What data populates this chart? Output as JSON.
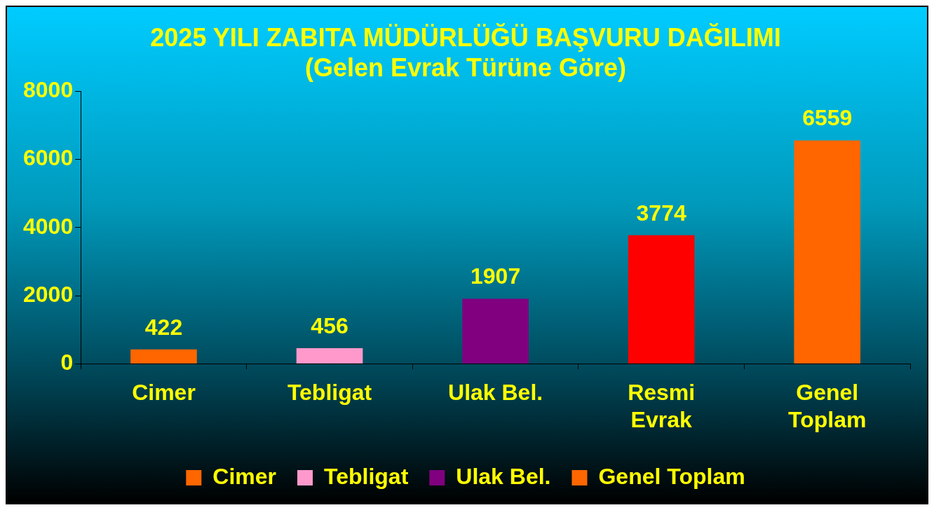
{
  "chart_data": {
    "type": "bar",
    "title": "2025 YILI ZABITA MÜDÜRLÜĞÜ BAŞVURU DAĞILIMI",
    "subtitle": "(Gelen Evrak Türüne Göre)",
    "categories": [
      "Cimer",
      "Tebligat",
      "Ulak Bel.",
      "Resmi Evrak",
      "Genel Toplam"
    ],
    "series": [
      {
        "name": "Cimer",
        "color": "#ff6600",
        "values": [
          422,
          null,
          null,
          null,
          null
        ]
      },
      {
        "name": "Tebligat",
        "color": "#ff99cc",
        "values": [
          null,
          456,
          null,
          null,
          null
        ]
      },
      {
        "name": "Ulak Bel.",
        "color": "#800080",
        "values": [
          null,
          null,
          1907,
          null,
          null
        ]
      },
      {
        "color": "#ff0000",
        "values": [
          null,
          null,
          null,
          3774,
          null
        ]
      },
      {
        "name": "Genel Toplam",
        "color": "#ff6600",
        "values": [
          null,
          null,
          null,
          null,
          6559
        ]
      }
    ],
    "stacked": true,
    "ylim": [
      0,
      8000
    ],
    "yticks": [
      0,
      2000,
      4000,
      6000,
      8000
    ],
    "grid": false,
    "legend": "bottom",
    "data_labels": true
  }
}
